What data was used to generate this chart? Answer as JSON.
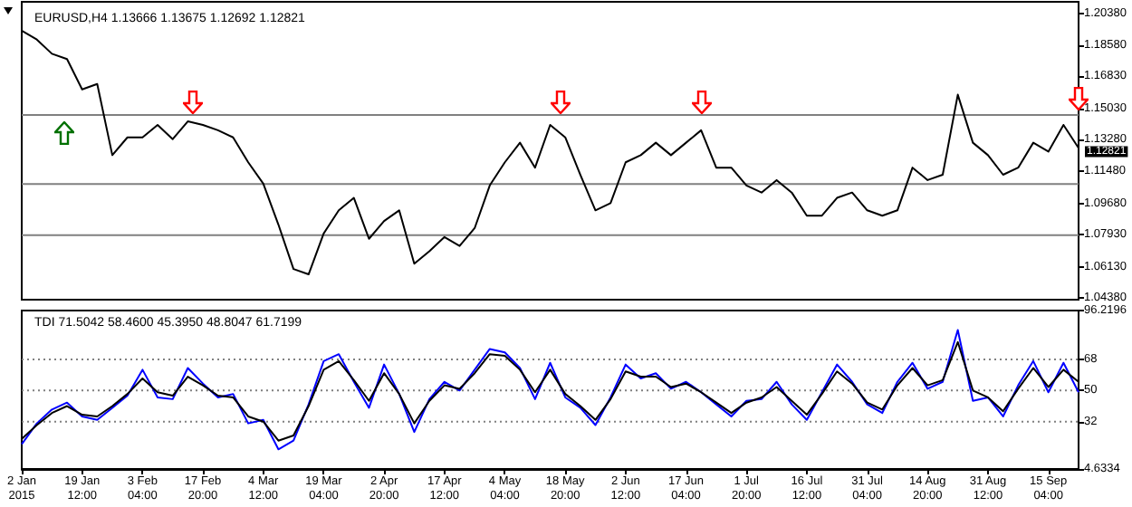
{
  "chart_data": [
    {
      "type": "line",
      "title": "EURUSD,H4 1.13666 1.13675 1.12692 1.12821",
      "categories": [
        null,
        null,
        null,
        null,
        null,
        null,
        null,
        null,
        null,
        null,
        null,
        null,
        null,
        null,
        null,
        null,
        null,
        null,
        null,
        null,
        null,
        null,
        null,
        null,
        null,
        null,
        null,
        null,
        null,
        null,
        null,
        null,
        null,
        null,
        null,
        null,
        null,
        null,
        null,
        null,
        null,
        null,
        null,
        null,
        null,
        null,
        null,
        null,
        null,
        null,
        null,
        null,
        null,
        null,
        null,
        null,
        null,
        null,
        null,
        null,
        null,
        null,
        null,
        null,
        null,
        null,
        null,
        null,
        null,
        null,
        null
      ],
      "series": [
        {
          "color": "#000000",
          "values": [
            1.194,
            1.189,
            1.181,
            1.178,
            1.161,
            1.164,
            1.124,
            1.134,
            1.134,
            1.141,
            1.133,
            1.143,
            1.141,
            1.138,
            1.134,
            1.12,
            1.108,
            1.085,
            1.06,
            1.057,
            1.08,
            1.093,
            1.1,
            1.077,
            1.087,
            1.093,
            1.063,
            1.07,
            1.078,
            1.073,
            1.083,
            1.107,
            1.12,
            1.131,
            1.117,
            1.141,
            1.134,
            1.113,
            1.093,
            1.097,
            1.12,
            1.124,
            1.131,
            1.124,
            1.131,
            1.138,
            1.117,
            1.117,
            1.107,
            1.103,
            1.11,
            1.103,
            1.09,
            1.09,
            1.1,
            1.103,
            1.093,
            1.09,
            1.093,
            1.117,
            1.11,
            1.113,
            1.158,
            1.131,
            1.124,
            1.113,
            1.117,
            1.131,
            1.126,
            1.141,
            1.128
          ]
        }
      ],
      "ylim": [
        1.0428,
        1.2102
      ],
      "yticks": [
        {
          "value": 1.0438,
          "label": "1.04380"
        },
        {
          "value": 1.0613,
          "label": "1.06130"
        },
        {
          "value": 1.0793,
          "label": "1.07930"
        },
        {
          "value": 1.0968,
          "label": "1.09680"
        },
        {
          "value": 1.1148,
          "label": "1.11480"
        },
        {
          "value": 1.1328,
          "label": "1.13280"
        },
        {
          "value": 1.1503,
          "label": "1.15030"
        },
        {
          "value": 1.1683,
          "label": "1.16830"
        },
        {
          "value": 1.1858,
          "label": "1.18580"
        },
        {
          "value": 1.2038,
          "label": "1.20380"
        }
      ],
      "ref_lines": [
        {
          "axis": "y",
          "value": 1.1466,
          "color": "#808080",
          "line_style": "solid"
        },
        {
          "axis": "y",
          "value": 1.1078,
          "color": "#808080",
          "line_style": "solid"
        },
        {
          "axis": "y",
          "value": 1.0791,
          "color": "#808080",
          "line_style": "solid"
        }
      ],
      "annotations": [
        "1.12821"
      ],
      "tick_labels": "y",
      "marker": "none"
    },
    {
      "type": "line",
      "title": "TDI 71.5042 58.4600 45.3950 48.8047 61.7199",
      "categories": [
        "2 Jan 2015",
        null,
        null,
        null,
        "19 Jan 12:00",
        null,
        null,
        null,
        "3 Feb 04:00",
        null,
        null,
        null,
        "17 Feb 20:00",
        null,
        null,
        null,
        "4 Mar 12:00",
        null,
        null,
        null,
        "19 Mar 04:00",
        null,
        null,
        null,
        "2 Apr 20:00",
        null,
        null,
        null,
        "17 Apr 12:00",
        null,
        null,
        null,
        "4 May 04:00",
        null,
        null,
        null,
        "18 May 20:00",
        null,
        null,
        null,
        "2 Jun 12:00",
        null,
        null,
        null,
        "17 Jun 04:00",
        null,
        null,
        null,
        "1 Jul 20:00",
        null,
        null,
        null,
        "16 Jul 12:00",
        null,
        null,
        null,
        "31 Jul 04:00",
        null,
        null,
        null,
        "14 Aug 20:00",
        null,
        null,
        null,
        "31 Aug 12:00",
        null,
        null,
        null,
        "15 Sep 04:00",
        null,
        null
      ],
      "series": [
        {
          "color": "#0000ff",
          "values": [
            19,
            31,
            39,
            43,
            35,
            33,
            40,
            47,
            62,
            46,
            45,
            63,
            54,
            46,
            48,
            31,
            33,
            16,
            21,
            42,
            67,
            71,
            55,
            40,
            65,
            48,
            26,
            45,
            55,
            50,
            62,
            74,
            72,
            63,
            45,
            66,
            46,
            40,
            30,
            46,
            65,
            57,
            60,
            51,
            55,
            49,
            42,
            35,
            44,
            45,
            55,
            42,
            33,
            49,
            65,
            55,
            42,
            37,
            55,
            66,
            51,
            55,
            85,
            44,
            46,
            35,
            53,
            67,
            49,
            66,
            49
          ]
        },
        {
          "color": "#000000",
          "values": [
            22,
            30,
            37,
            41,
            36,
            35,
            41,
            48,
            57,
            49,
            47,
            58,
            53,
            47,
            46,
            35,
            32,
            21,
            24,
            41,
            62,
            67,
            56,
            44,
            60,
            48,
            31,
            44,
            53,
            51,
            60,
            71,
            70,
            62,
            49,
            62,
            48,
            41,
            33,
            45,
            61,
            58,
            58,
            52,
            54,
            49,
            43,
            37,
            43,
            46,
            52,
            44,
            36,
            48,
            61,
            54,
            43,
            39,
            53,
            63,
            53,
            56,
            78,
            50,
            46,
            38,
            51,
            63,
            52,
            62,
            55
          ]
        }
      ],
      "ylim": [
        4.6334,
        96.2196
      ],
      "yticks": [
        4.6334,
        32,
        50,
        68,
        96.2196
      ],
      "ref_lines": [
        {
          "axis": "y",
          "value": 32,
          "color": "#808080",
          "line_style": "dotted"
        },
        {
          "axis": "y",
          "value": 50,
          "color": "#808080",
          "line_style": "dotted"
        },
        {
          "axis": "y",
          "value": 68,
          "color": "#808080",
          "line_style": "dotted"
        }
      ],
      "marker": "none"
    }
  ]
}
